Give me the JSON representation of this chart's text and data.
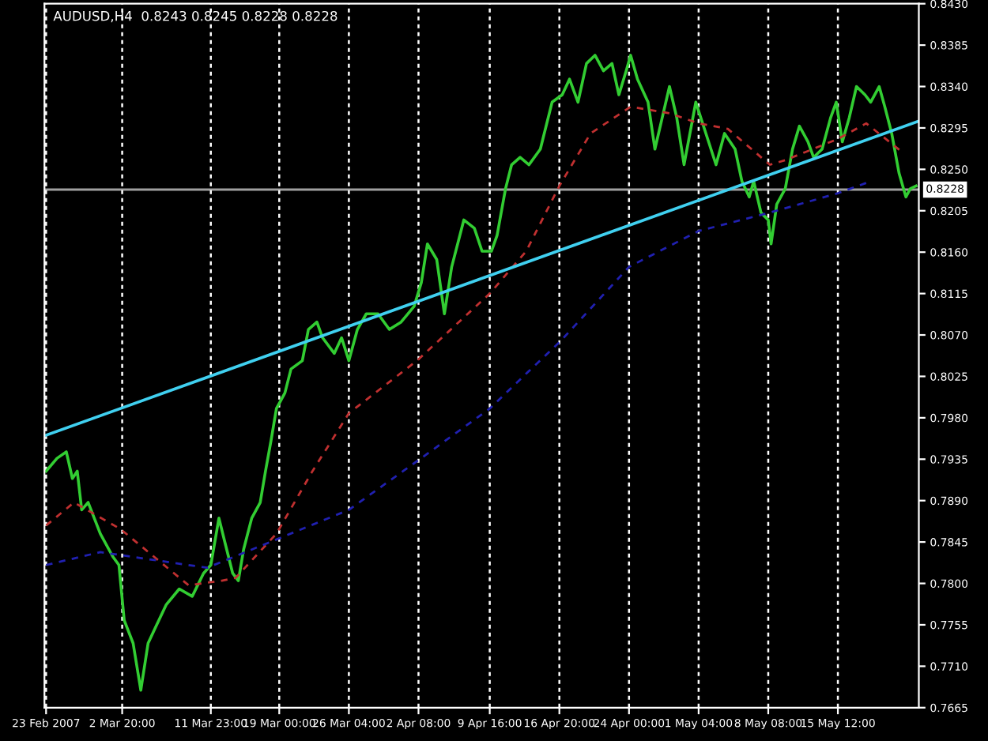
{
  "chart_data": {
    "type": "line",
    "title": "AUDUSD,H4  0.8243 0.8245 0.8228 0.8228",
    "xlim": [
      "2007-02-22T20:00",
      "2007-05-23T20:00"
    ],
    "ylim": [
      0.7665,
      0.843
    ],
    "xticks": [
      {
        "value": "2007-02-23T00:00",
        "label": "23 Feb 2007"
      },
      {
        "value": "2007-03-02T20:00",
        "label": "2 Mar 20:00"
      },
      {
        "value": "2007-03-11T23:00",
        "label": "11 Mar 23:00"
      },
      {
        "value": "2007-03-19T00:00",
        "label": "19 Mar 00:00"
      },
      {
        "value": "2007-03-26T04:00",
        "label": "26 Mar 04:00"
      },
      {
        "value": "2007-04-02T08:00",
        "label": "2 Apr 08:00"
      },
      {
        "value": "2007-04-09T16:00",
        "label": "9 Apr 16:00"
      },
      {
        "value": "2007-04-16T20:00",
        "label": "16 Apr 20:00"
      },
      {
        "value": "2007-04-24T00:00",
        "label": "24 Apr 00:00"
      },
      {
        "value": "2007-05-01T04:00",
        "label": "1 May 04:00"
      },
      {
        "value": "2007-05-08T08:00",
        "label": "8 May 08:00"
      },
      {
        "value": "2007-05-15T12:00",
        "label": "15 May 12:00"
      }
    ],
    "yticks": [
      {
        "value": 0.843,
        "label": "0.8430"
      },
      {
        "value": 0.8385,
        "label": "0.8385"
      },
      {
        "value": 0.834,
        "label": "0.8340"
      },
      {
        "value": 0.8295,
        "label": "0.8295"
      },
      {
        "value": 0.825,
        "label": "0.8250"
      },
      {
        "value": 0.8205,
        "label": "0.8205"
      },
      {
        "value": 0.816,
        "label": "0.8160"
      },
      {
        "value": 0.8115,
        "label": "0.8115"
      },
      {
        "value": 0.807,
        "label": "0.8070"
      },
      {
        "value": 0.8025,
        "label": "0.8025"
      },
      {
        "value": 0.798,
        "label": "0.7980"
      },
      {
        "value": 0.7935,
        "label": "0.7935"
      },
      {
        "value": 0.789,
        "label": "0.7890"
      },
      {
        "value": 0.7845,
        "label": "0.7845"
      },
      {
        "value": 0.78,
        "label": "0.7800"
      },
      {
        "value": 0.7755,
        "label": "0.7755"
      },
      {
        "value": 0.771,
        "label": "0.7710"
      },
      {
        "value": 0.7665,
        "label": "0.7665"
      }
    ],
    "grid": "x",
    "marker": "none",
    "ref_lines": [
      {
        "axis": "y",
        "value": 0.8228,
        "label": "0.8228",
        "color": "#a0a0a0"
      }
    ],
    "series": [
      {
        "color": "#32cd32",
        "line_style": "solid",
        "x": [
          "2007-02-23T00:00",
          "2007-02-24T03:00",
          "2007-02-25T02:00",
          "2007-02-25T17:00",
          "2007-02-26T05:00",
          "2007-02-26T16:00",
          "2007-02-27T08:00",
          "2007-02-28T14:00",
          "2007-03-01T21:00",
          "2007-03-02T12:00",
          "2007-03-03T01:00",
          "2007-03-03T23:00",
          "2007-03-04T18:00",
          "2007-03-05T12:00",
          "2007-03-06T06:00",
          "2007-03-07T09:00",
          "2007-03-08T17:00",
          "2007-03-10T01:00",
          "2007-03-11T05:00",
          "2007-03-11T23:00",
          "2007-03-12T19:00",
          "2007-03-13T09:00",
          "2007-03-14T05:00",
          "2007-03-14T19:00",
          "2007-03-15T08:00",
          "2007-03-16T04:00",
          "2007-03-17T01:00",
          "2007-03-17T14:00",
          "2007-03-18T04:00",
          "2007-03-18T17:00",
          "2007-03-19T14:00",
          "2007-03-20T05:00",
          "2007-03-21T09:00",
          "2007-03-22T00:00",
          "2007-03-22T21:00",
          "2007-03-23T11:00",
          "2007-03-24T16:00",
          "2007-03-25T10:00",
          "2007-03-26T04:00",
          "2007-03-27T01:00",
          "2007-03-27T23:00",
          "2007-03-29T04:00",
          "2007-03-30T08:00",
          "2007-03-31T13:00",
          "2007-04-01T21:00",
          "2007-04-02T15:00",
          "2007-04-03T06:00",
          "2007-04-04T05:00",
          "2007-04-05T00:00",
          "2007-04-05T18:00",
          "2007-04-07T00:00",
          "2007-04-08T02:00",
          "2007-04-08T21:00",
          "2007-04-09T20:00",
          "2007-04-10T10:00",
          "2007-04-11T07:00",
          "2007-04-11T22:00",
          "2007-04-12T19:00",
          "2007-04-13T17:00",
          "2007-04-14T21:00",
          "2007-04-16T02:00",
          "2007-04-17T03:00",
          "2007-04-17T21:00",
          "2007-04-18T18:00",
          "2007-04-19T15:00",
          "2007-04-20T12:00",
          "2007-04-21T09:00",
          "2007-04-22T06:00",
          "2007-04-22T23:00",
          "2007-04-23T17:00",
          "2007-04-24T04:00",
          "2007-04-24T21:00",
          "2007-04-25T23:00",
          "2007-04-26T16:00",
          "2007-04-27T10:00",
          "2007-04-28T04:00",
          "2007-04-28T22:00",
          "2007-04-29T16:00",
          "2007-04-30T21:00",
          "2007-05-01T22:00",
          "2007-05-02T23:00",
          "2007-05-03T20:00",
          "2007-05-04T22:00",
          "2007-05-05T15:00",
          "2007-05-06T09:00",
          "2007-05-06T20:00",
          "2007-05-07T14:00",
          "2007-05-08T08:00",
          "2007-05-08T15:00",
          "2007-05-09T05:00",
          "2007-05-10T02:00",
          "2007-05-10T20:00",
          "2007-05-11T13:00",
          "2007-05-12T10:00",
          "2007-05-13T00:00",
          "2007-05-13T21:00",
          "2007-05-14T18:00",
          "2007-05-15T08:00",
          "2007-05-15T23:00",
          "2007-05-16T16:00",
          "2007-05-17T10:00",
          "2007-05-18T07:00",
          "2007-05-18T21:00",
          "2007-05-19T18:00",
          "2007-05-20T08:00",
          "2007-05-21T01:00",
          "2007-05-21T19:00",
          "2007-05-22T12:00",
          "2007-05-22T23:00",
          "2007-05-23T13:00"
        ],
        "values": [
          0.7922,
          0.7936,
          0.7943,
          0.7914,
          0.7922,
          0.788,
          0.7888,
          0.7854,
          0.7829,
          0.782,
          0.776,
          0.7735,
          0.7684,
          0.7735,
          0.7752,
          0.7777,
          0.7794,
          0.7786,
          0.7811,
          0.782,
          0.7871,
          0.7846,
          0.7811,
          0.7803,
          0.7837,
          0.7871,
          0.7888,
          0.7922,
          0.7956,
          0.799,
          0.8007,
          0.8033,
          0.8042,
          0.8076,
          0.8084,
          0.8067,
          0.805,
          0.8067,
          0.8042,
          0.8076,
          0.8093,
          0.8093,
          0.8076,
          0.8084,
          0.8101,
          0.8127,
          0.8169,
          0.8152,
          0.8093,
          0.8144,
          0.8195,
          0.8186,
          0.8161,
          0.8161,
          0.8178,
          0.8229,
          0.8255,
          0.8263,
          0.8255,
          0.8272,
          0.8323,
          0.8331,
          0.8348,
          0.8323,
          0.8365,
          0.8374,
          0.8357,
          0.8365,
          0.8331,
          0.8357,
          0.8374,
          0.8348,
          0.8323,
          0.8272,
          0.8306,
          0.834,
          0.8306,
          0.8255,
          0.8323,
          0.8289,
          0.8255,
          0.8289,
          0.8272,
          0.8237,
          0.822,
          0.8237,
          0.8203,
          0.8195,
          0.8169,
          0.8212,
          0.8229,
          0.8272,
          0.8297,
          0.828,
          0.8263,
          0.8272,
          0.8306,
          0.8323,
          0.828,
          0.8306,
          0.834,
          0.8331,
          0.8323,
          0.834,
          0.8318,
          0.8289,
          0.8246,
          0.822,
          0.8229,
          0.8232
        ]
      },
      {
        "color": "#c03030",
        "line_style": "dashed",
        "x": [
          "2007-02-23T00:00",
          "2007-02-25T21:00",
          "2007-03-02T16:00",
          "2007-03-09T16:00",
          "2007-03-13T02:00",
          "2007-03-14T12:00",
          "2007-03-18T17:00",
          "2007-03-22T10:00",
          "2007-03-26T04:00",
          "2007-04-02T04:00",
          "2007-04-09T16:00",
          "2007-04-13T10:00",
          "2007-04-16T20:00",
          "2007-04-20T01:00",
          "2007-04-24T04:00",
          "2007-04-28T04:00",
          "2007-05-01T04:00",
          "2007-05-04T04:00",
          "2007-05-08T12:00",
          "2007-05-10T02:00",
          "2007-05-15T12:00",
          "2007-05-18T10:00",
          "2007-05-22T05:00"
        ],
        "values": [
          0.7863,
          0.7888,
          0.7859,
          0.7798,
          0.7803,
          0.7806,
          0.7854,
          0.7922,
          0.7985,
          0.8042,
          0.8115,
          0.8161,
          0.8232,
          0.8289,
          0.8318,
          0.8311,
          0.83,
          0.8294,
          0.8255,
          0.826,
          0.8283,
          0.83,
          0.8268
        ]
      },
      {
        "color": "#2020b0",
        "line_style": "dashed",
        "x": [
          "2007-02-23T00:00",
          "2007-02-28T14:00",
          "2007-03-11T14:00",
          "2007-03-19T00:00",
          "2007-03-26T04:00",
          "2007-04-02T08:00",
          "2007-04-09T16:00",
          "2007-04-13T10:00",
          "2007-04-16T20:00",
          "2007-04-24T00:00",
          "2007-05-01T04:00",
          "2007-05-08T12:00",
          "2007-05-15T12:00",
          "2007-05-18T21:00"
        ],
        "values": [
          0.782,
          0.7834,
          0.7817,
          0.7849,
          0.788,
          0.7934,
          0.799,
          0.8028,
          0.8062,
          0.8144,
          0.8183,
          0.8203,
          0.8224,
          0.8237
        ]
      },
      {
        "color": "#40d0f0",
        "line_style": "solid",
        "x": [
          "2007-02-23T00:00",
          "2007-05-23T17:00"
        ],
        "values": [
          0.7961,
          0.8302
        ]
      }
    ]
  }
}
